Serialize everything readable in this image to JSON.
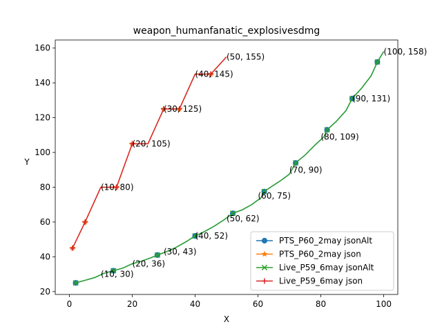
{
  "chart_data": {
    "type": "line",
    "title": "weapon_humanfanatic_explosivesdmg",
    "xlabel": "X",
    "ylabel": "Y",
    "xlim": [
      -4.5,
      104.5
    ],
    "ylim": [
      18.35,
      164.65
    ],
    "xticks": [
      0,
      20,
      40,
      60,
      80,
      100
    ],
    "yticks": [
      20,
      40,
      60,
      80,
      100,
      120,
      140,
      160
    ],
    "legend_position": "lower-right",
    "series": [
      {
        "name": "PTS_P60_2may jsonAlt",
        "color": "#1f77b4",
        "marker": "circle",
        "x": [
          2,
          5,
          8,
          11,
          14,
          17,
          20,
          23,
          26,
          28,
          31,
          34,
          37,
          40,
          43,
          46,
          49,
          52,
          55,
          58,
          61,
          62,
          64,
          67,
          70,
          72,
          75,
          78,
          81,
          82,
          85,
          88,
          90,
          93,
          96,
          98,
          100
        ],
        "y": [
          25,
          26.5,
          28,
          30.5,
          32,
          33.5,
          36,
          37.5,
          39.5,
          41,
          43,
          45.5,
          48.5,
          52,
          54.5,
          57.5,
          61,
          65,
          67,
          70,
          74,
          77.5,
          80,
          83.5,
          87.5,
          94,
          98.5,
          104,
          109,
          113,
          118,
          124,
          131,
          137,
          144,
          152,
          158
        ],
        "marker_points": [
          [
            2,
            25
          ],
          [
            14,
            32
          ],
          [
            28,
            41
          ],
          [
            40,
            52
          ],
          [
            52,
            65
          ],
          [
            62,
            77.5
          ],
          [
            72,
            94
          ],
          [
            82,
            113
          ],
          [
            90,
            131
          ],
          [
            98,
            152
          ]
        ]
      },
      {
        "name": "PTS_P60_2may json",
        "color": "#ff7f0e",
        "marker": "star",
        "x": [
          1,
          5,
          10,
          15,
          20,
          25,
          30,
          35,
          40,
          45,
          50
        ],
        "y": [
          45,
          60,
          80,
          80,
          105,
          105,
          125,
          125,
          145,
          145,
          155
        ],
        "marker_points": [
          [
            1,
            45
          ],
          [
            5,
            60
          ],
          [
            15,
            80
          ],
          [
            20,
            105
          ],
          [
            30,
            125
          ],
          [
            35,
            125
          ],
          [
            45,
            145
          ]
        ]
      },
      {
        "name": "Live_P59_6may jsonAlt",
        "color": "#2ca02c",
        "marker": "x",
        "x": [
          2,
          5,
          8,
          11,
          14,
          17,
          20,
          23,
          26,
          28,
          31,
          34,
          37,
          40,
          43,
          46,
          49,
          52,
          55,
          58,
          61,
          62,
          64,
          67,
          70,
          72,
          75,
          78,
          81,
          82,
          85,
          88,
          90,
          93,
          96,
          98,
          100
        ],
        "y": [
          25,
          26.5,
          28,
          30.5,
          32,
          33.5,
          36,
          37.5,
          39.5,
          41,
          43,
          45.5,
          48.5,
          52,
          54.5,
          57.5,
          61,
          65,
          67,
          70,
          74,
          77.5,
          80,
          83.5,
          87.5,
          94,
          98.5,
          104,
          109,
          113,
          118,
          124,
          131,
          137,
          144,
          152,
          158
        ],
        "marker_points": [
          [
            2,
            25
          ],
          [
            14,
            32
          ],
          [
            28,
            41
          ],
          [
            40,
            52
          ],
          [
            52,
            65
          ],
          [
            62,
            77.5
          ],
          [
            72,
            94
          ],
          [
            82,
            113
          ],
          [
            90,
            131
          ],
          [
            98,
            152
          ]
        ]
      },
      {
        "name": "Live_P59_6may json",
        "color": "#d62728",
        "marker": "plus",
        "x": [
          1,
          5,
          10,
          15,
          20,
          25,
          30,
          35,
          40,
          45,
          50
        ],
        "y": [
          45,
          60,
          80,
          80,
          105,
          105,
          125,
          125,
          145,
          145,
          155
        ],
        "marker_points": [
          [
            1,
            45
          ],
          [
            5,
            60
          ],
          [
            15,
            80
          ],
          [
            20,
            105
          ],
          [
            30,
            125
          ],
          [
            35,
            125
          ],
          [
            45,
            145
          ]
        ]
      }
    ],
    "annotations": [
      {
        "text": "(10, 30)",
        "x": 10,
        "y": 30
      },
      {
        "text": "(20, 36)",
        "x": 20,
        "y": 36
      },
      {
        "text": "(30, 43)",
        "x": 30,
        "y": 43
      },
      {
        "text": "(40, 52)",
        "x": 40,
        "y": 52
      },
      {
        "text": "(50, 62)",
        "x": 50,
        "y": 62
      },
      {
        "text": "(60, 75)",
        "x": 60,
        "y": 75
      },
      {
        "text": "(70, 90)",
        "x": 70,
        "y": 90
      },
      {
        "text": "(80, 109)",
        "x": 80,
        "y": 109
      },
      {
        "text": "(90, 131)",
        "x": 90,
        "y": 131
      },
      {
        "text": "(100, 158)",
        "x": 100,
        "y": 158
      },
      {
        "text": "(10, 80)",
        "x": 10,
        "y": 80
      },
      {
        "text": "(20, 105)",
        "x": 20,
        "y": 105
      },
      {
        "text": "(30, 125)",
        "x": 30,
        "y": 125
      },
      {
        "text": "(40, 145)",
        "x": 40,
        "y": 145
      },
      {
        "text": "(50, 155)",
        "x": 50,
        "y": 155
      }
    ]
  }
}
